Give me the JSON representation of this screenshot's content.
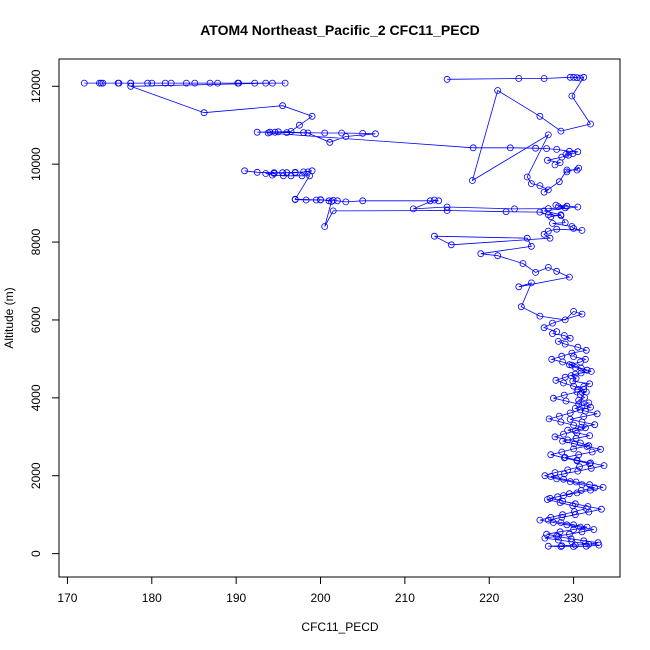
{
  "chart_data": {
    "type": "line",
    "title": "ATOM4 Northeast_Pacific_2 CFC11_PECD",
    "xlabel": "CFC11_PECD",
    "ylabel": "Altitude (m)",
    "xlim": [
      169,
      235.5
    ],
    "ylim": [
      -600,
      12700
    ],
    "xticks": [
      170,
      180,
      190,
      200,
      210,
      220,
      230
    ],
    "yticks": [
      0,
      2000,
      4000,
      6000,
      8000,
      10000,
      12000
    ],
    "grid": false,
    "legend": "none",
    "marker": "open-circle",
    "color": "#0000ff",
    "series": [
      {
        "x": [
          195.8,
          193.5,
          190.2,
          186.9,
          184.1,
          181.6,
          179.5,
          177.5,
          176.0,
          174.2,
          173.8,
          172.0,
          174.0,
          176.1,
          177.5,
          180.0,
          182.3,
          185.1,
          187.8,
          190.3,
          192.2,
          194.3,
          177.5,
          186.2,
          195.5,
          199.0,
          197.5,
          196.5,
          194.6,
          192.5,
          195.0,
          198.0,
          200.5,
          202.5,
          205.0,
          206.5,
          203.0,
          201.1,
          198.5,
          196.0,
          194.0,
          193.8,
          218.1,
          222.5,
          225.5,
          226.8,
          228.0,
          229.5,
          230.5,
          229.9,
          229.1,
          229.4,
          228.6,
          226.9,
          228.4,
          227.8
        ],
        "y": [
          12080,
          12080,
          12080,
          12080,
          12080,
          12080,
          12080,
          12080,
          12080,
          12080,
          12080,
          12080,
          12080,
          12080,
          12080,
          12080,
          12080,
          12080,
          12080,
          12080,
          12080,
          12080,
          12000,
          11320,
          11500,
          11230,
          11000,
          10840,
          10820,
          10820,
          10830,
          10810,
          10800,
          10800,
          10790,
          10780,
          10710,
          10560,
          10800,
          10810,
          10820,
          10800,
          10420,
          10420,
          10410,
          10400,
          10380,
          10330,
          10320,
          10270,
          10250,
          10230,
          10180,
          10100,
          10040,
          9980
        ]
      },
      {
        "x": [
          215.0,
          223.5,
          226.5,
          229.6,
          230.0,
          230.4,
          230.8,
          231.2,
          229.8,
          232.0,
          228.5,
          226.0,
          221.0,
          218.0,
          227.0,
          224.5,
          225.0,
          226.0,
          227.0,
          226.5,
          228.3,
          229.2,
          230.4,
          230.6,
          229.2
        ],
        "y": [
          12180,
          12200,
          12200,
          12230,
          12230,
          12220,
          12210,
          12230,
          11750,
          11030,
          10850,
          11230,
          11890,
          9580,
          10750,
          9670,
          9500,
          9450,
          9340,
          9280,
          9550,
          9850,
          9850,
          9900,
          9800
        ]
      },
      {
        "x": [
          191.0,
          192.5,
          194.5,
          196.0,
          197.0,
          198.5,
          199.0,
          198.0,
          197.0,
          195.5,
          194.5,
          193.5,
          194.3,
          195.6,
          196.5,
          197.8,
          198.7,
          197.0,
          200.0,
          201.5,
          202.0,
          203.0,
          205.0,
          213.0,
          214.0,
          213.5,
          211.0,
          215.0,
          223.0,
          227.0,
          229.0,
          228.2,
          229.2,
          227.9,
          230.5,
          226.5,
          228.5,
          227.3
        ],
        "y": [
          9830,
          9790,
          9780,
          9780,
          9790,
          9800,
          9830,
          9800,
          9780,
          9780,
          9760,
          9760,
          9720,
          9700,
          9700,
          9700,
          9700,
          9100,
          9080,
          9070,
          9060,
          9030,
          9060,
          9060,
          9060,
          9080,
          8850,
          8900,
          8850,
          8860,
          8880,
          8910,
          8920,
          8950,
          8900,
          8800,
          8700,
          8650
        ]
      },
      {
        "x": [
          197.0,
          198.3,
          199.5,
          200.0,
          201.0,
          201.3,
          200.5,
          201.5,
          215.0,
          222.0,
          226.0,
          227.0,
          228.5,
          229.0,
          227.5,
          229.8,
          230.0,
          231.0,
          228.0,
          227.0,
          226.5,
          227.2,
          215.5,
          213.5,
          224.5,
          225.0,
          219.0,
          221.0,
          224.0,
          225.5,
          227.0,
          228.0,
          229.5,
          223.5,
          225.0,
          223.8,
          226.0,
          229.0,
          230.0,
          231.0,
          227.5,
          226.5,
          228.0
        ],
        "y": [
          9090,
          9080,
          9080,
          9090,
          9060,
          9040,
          8400,
          8800,
          8810,
          8780,
          8770,
          8700,
          8680,
          8500,
          8480,
          8400,
          8350,
          8300,
          8330,
          8280,
          8200,
          8100,
          7930,
          8150,
          8100,
          7890,
          7700,
          7650,
          7450,
          7220,
          7350,
          7250,
          7100,
          6850,
          6950,
          6340,
          6100,
          6000,
          6220,
          6150,
          5920,
          5800,
          5700
        ]
      },
      {
        "x": [
          227.5,
          228.9,
          229.6,
          228.2,
          229.0,
          230.5,
          231.5,
          229.8,
          228.6,
          227.4,
          228.7,
          229.8,
          230.9,
          232.1,
          230.2,
          229.0,
          227.9,
          228.8,
          230.0,
          231.2,
          230.4,
          228.9,
          227.6,
          229.1,
          230.6,
          232.0,
          230.8,
          229.6,
          228.3,
          227.1,
          228.5,
          230.0,
          231.4,
          230.2,
          228.8,
          227.8,
          229.3,
          230.8,
          231.8,
          230.0,
          228.6,
          227.3,
          228.9,
          230.4,
          231.9,
          230.7,
          229.3,
          227.8,
          226.6,
          228.0,
          229.6,
          231.0,
          232.5,
          230.9,
          229.5,
          228.1,
          226.9,
          228.4,
          229.9,
          231.5,
          230.1,
          228.7,
          227.3,
          226.0,
          227.6,
          229.2,
          230.8,
          232.4,
          231.0,
          229.5,
          228.0,
          226.6,
          228.2,
          229.8,
          231.4,
          233.0,
          231.5,
          230.0,
          228.5,
          227.0,
          228.6,
          230.2,
          231.8,
          232.9,
          231.2,
          229.7,
          228.2,
          226.8,
          228.4,
          230.0,
          231.6,
          230.0,
          228.5,
          227.0,
          228.6,
          230.2,
          231.8,
          233.3,
          231.7,
          230.2,
          228.7,
          227.2,
          228.8,
          230.4,
          232.0,
          233.5,
          231.9,
          230.3,
          228.8,
          227.3,
          228.9,
          230.5,
          232.1,
          233.6,
          232.0,
          230.4,
          229.0,
          230.6,
          232.2,
          233.2,
          231.6,
          230.1,
          228.7,
          230.3,
          231.9,
          230.4,
          229.3,
          230.9,
          232.5,
          231.0,
          229.6,
          231.2,
          232.8,
          231.4,
          230.2,
          231.0,
          231.8,
          230.6,
          231.3,
          230.8,
          231.5,
          230.5,
          231.2,
          231.9,
          229.9,
          230.3,
          229.7,
          230.9,
          231.6,
          230.2,
          229.5,
          230.8,
          231.4,
          230.0
        ],
        "y": [
          5650,
          5600,
          5530,
          5450,
          5380,
          5300,
          5220,
          5150,
          5070,
          4990,
          4920,
          4840,
          4760,
          4680,
          4610,
          4530,
          4450,
          4380,
          4300,
          4220,
          4150,
          4070,
          3990,
          3920,
          3840,
          3760,
          3690,
          3610,
          3530,
          3460,
          3380,
          3300,
          3230,
          3150,
          3070,
          3000,
          2920,
          2840,
          2770,
          2690,
          2610,
          2540,
          2460,
          2380,
          2310,
          2230,
          2150,
          2080,
          2000,
          1920,
          1850,
          1770,
          1690,
          1620,
          1540,
          1460,
          1390,
          1310,
          1230,
          1160,
          1080,
          1000,
          930,
          860,
          800,
          740,
          680,
          620,
          560,
          500,
          450,
          400,
          350,
          300,
          260,
          220,
          190,
          180,
          180,
          190,
          200,
          220,
          240,
          280,
          330,
          380,
          440,
          500,
          560,
          620,
          680,
          740,
          800,
          860,
          930,
          1000,
          1070,
          1140,
          1210,
          1280,
          1350,
          1420,
          1490,
          1560,
          1630,
          1700,
          1770,
          1840,
          1910,
          1980,
          2050,
          2120,
          2190,
          2260,
          2330,
          2400,
          2470,
          2540,
          2610,
          2680,
          2750,
          2820,
          2890,
          2960,
          3030,
          3100,
          3170,
          3240,
          3310,
          3380,
          3450,
          3520,
          3590,
          3660,
          3730,
          3800,
          3870,
          3940,
          4010,
          4080,
          4150,
          4220,
          4290,
          4360,
          4430,
          4500,
          4570,
          4640,
          4710,
          4780,
          4850,
          4920,
          4990,
          5060
        ]
      }
    ]
  }
}
